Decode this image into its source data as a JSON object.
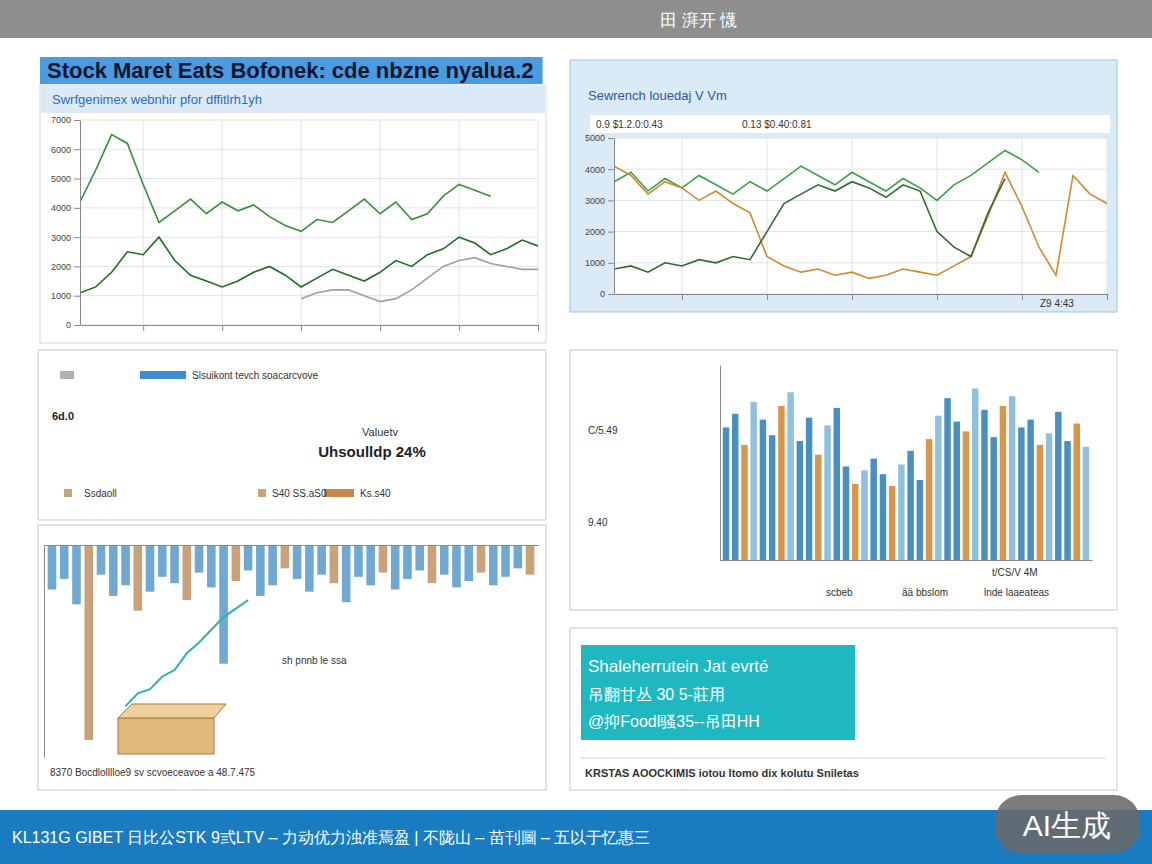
{
  "page": {
    "header": "田 湃开 懱",
    "title": "Stock Maret Eats Bofonek: cde nbzne nyalua.2",
    "footer": "KL131G GIBET   日比公STK 9弎LTV – 力动优力浊准焉盈 | 不陇山 – 苗刊圖 – 五以于忆惠三",
    "badge": "AI生成",
    "kpi": {
      "legend_text": "Slsuikont tevch soacarcvove",
      "left_label": "6d.0",
      "caption": "Valuetv",
      "value": "Uhsoulldp 24%",
      "footer": [
        "Ssdaoll",
        "S40 SS.aS0",
        "Ks.s40"
      ]
    },
    "note": {
      "lines": [
        "Shaleherrutein Jat evrté",
        "吊翻甘丛 30 5-莊用",
        "@抑Foodl骚35--吊田HH"
      ],
      "footer": "KRSTAS AOOCKIMIS iotou ltomo dix kolutu   Sniletas"
    }
  },
  "chart_data": [
    {
      "type": "line",
      "title": "Swrfgenimex webnhir pfor dffitlrh1yh",
      "x": [
        1,
        2,
        3,
        4,
        5,
        6,
        7,
        8,
        9,
        10,
        11,
        12,
        13,
        14,
        15,
        16,
        17,
        18,
        19,
        20,
        21,
        22,
        23,
        24,
        25,
        26,
        27,
        28,
        29,
        30
      ],
      "xlim": [
        1,
        30
      ],
      "xticks": [
        5,
        10,
        15,
        20,
        25,
        30
      ],
      "ylim": [
        0,
        7000
      ],
      "yticks": [
        0,
        1000,
        2000,
        3000,
        4000,
        5000,
        6000,
        7000
      ],
      "grid": true,
      "tick_labels": "y",
      "series": [
        {
          "color": "#3a8f3a",
          "values": [
            4200,
            5300,
            6500,
            6200,
            4800,
            3500,
            3900,
            4300,
            3800,
            4200,
            3900,
            4100,
            3700,
            3400,
            3200,
            3600,
            3500,
            3900,
            4300,
            3800,
            4200,
            3600,
            3800,
            4400,
            4800,
            4600,
            4400,
            null,
            null,
            null
          ]
        },
        {
          "color": "#1e6e28",
          "values": [
            1100,
            1300,
            1800,
            2500,
            2400,
            3000,
            2200,
            1700,
            1500,
            1300,
            1500,
            1800,
            2000,
            1700,
            1300,
            1600,
            1900,
            1700,
            1500,
            1800,
            2200,
            2000,
            2400,
            2600,
            3000,
            2800,
            2400,
            2600,
            2900,
            2700
          ]
        },
        {
          "color": "#a0a0a0",
          "values": [
            null,
            null,
            null,
            null,
            null,
            null,
            null,
            null,
            null,
            null,
            null,
            null,
            null,
            null,
            900,
            1100,
            1200,
            1200,
            1000,
            800,
            900,
            1200,
            1600,
            2000,
            2200,
            2300,
            2100,
            2000,
            1900,
            1900
          ]
        }
      ]
    },
    {
      "type": "line",
      "title": "Sewrench louedaj V Vm",
      "annotations": [
        "0.9 $1.2.0:0.43",
        "0.13 $0.40:0.81",
        "Z9 4:43"
      ],
      "x": [
        1,
        2,
        3,
        4,
        5,
        6,
        7,
        8,
        9,
        10,
        11,
        12,
        13,
        14,
        15,
        16,
        17,
        18,
        19,
        20,
        21,
        22,
        23,
        24,
        25,
        26,
        27,
        28,
        29,
        30
      ],
      "xlim": [
        1,
        30
      ],
      "xticks": [
        5,
        10,
        15,
        20,
        25,
        30
      ],
      "ylim": [
        0,
        5000
      ],
      "yticks": [
        0,
        1000,
        2000,
        3000,
        4000,
        5000
      ],
      "grid": true,
      "tick_labels": "y",
      "series": [
        {
          "color": "#3aa04a",
          "values": [
            3600,
            3900,
            3300,
            3700,
            3400,
            3800,
            3500,
            3200,
            3600,
            3300,
            3700,
            4100,
            3800,
            3500,
            3900,
            3600,
            3300,
            3700,
            3400,
            3000,
            3500,
            3800,
            4200,
            4600,
            4300,
            3900,
            null,
            null,
            null,
            null
          ]
        },
        {
          "color": "#d08a2e",
          "values": [
            4100,
            3800,
            3200,
            3600,
            3400,
            3000,
            3300,
            2900,
            2600,
            1200,
            900,
            700,
            800,
            600,
            700,
            500,
            600,
            800,
            700,
            600,
            900,
            1200,
            2500,
            3900,
            2800,
            1500,
            600,
            3800,
            3200,
            2900
          ]
        },
        {
          "color": "#2e6b2e",
          "values": [
            800,
            900,
            700,
            1000,
            900,
            1100,
            1000,
            1200,
            1100,
            2000,
            2900,
            3200,
            3500,
            3300,
            3600,
            3400,
            3100,
            3500,
            3300,
            2000,
            1500,
            1200,
            2600,
            3700,
            null,
            null,
            null,
            null,
            null,
            null
          ]
        }
      ]
    },
    {
      "type": "bar",
      "annotations": [
        "C/5.49",
        "9.40",
        "t/CS/V 4M",
        "scbeb",
        "ää bbslom",
        "lnde laaeateas"
      ],
      "categories": [
        null,
        null,
        null,
        null,
        null,
        null,
        null,
        null,
        null,
        null,
        null,
        null,
        null,
        null,
        null,
        null,
        null,
        null,
        null,
        null,
        null,
        null,
        null,
        null,
        null,
        null,
        null,
        null,
        null,
        null,
        null,
        null,
        null,
        null,
        null,
        null,
        null,
        null,
        null,
        null
      ],
      "values": [
        6.8,
        7.5,
        5.9,
        8.1,
        7.2,
        6.4,
        7.9,
        8.6,
        6.1,
        7.3,
        5.4,
        6.9,
        7.8,
        4.8,
        3.9,
        4.6,
        5.2,
        4.4,
        3.8,
        4.9,
        5.6,
        4.1,
        6.2,
        7.4,
        8.3,
        7.1,
        6.6,
        8.8,
        7.7,
        6.3,
        7.9,
        8.4,
        6.8,
        7.2,
        5.9,
        6.5,
        7.6,
        6.1,
        7.0,
        5.8
      ],
      "colors": [
        "#4a8fc2",
        "#4a8fc2",
        "#d9954a",
        "#8fc0e0",
        "#4a8fc2",
        "#4a8fc2",
        "#d9954a",
        "#8fc0e0",
        "#4a8fc2",
        "#4a8fc2",
        "#d9954a",
        "#8fc0e0",
        "#4a8fc2",
        "#4a8fc2",
        "#d9954a",
        "#8fc0e0",
        "#4a8fc2",
        "#4a8fc2",
        "#d9954a",
        "#8fc0e0",
        "#4a8fc2",
        "#4a8fc2",
        "#d9954a",
        "#8fc0e0",
        "#4a8fc2",
        "#4a8fc2",
        "#d9954a",
        "#8fc0e0",
        "#4a8fc2",
        "#4a8fc2",
        "#d9954a",
        "#8fc0e0",
        "#4a8fc2",
        "#4a8fc2",
        "#d9954a",
        "#8fc0e0",
        "#4a8fc2",
        "#4a8fc2",
        "#d9954a",
        "#8fc0e0"
      ],
      "ylim": [
        0,
        10
      ],
      "grid": false,
      "tick_labels": false
    },
    {
      "type": "bar",
      "annotations": [
        "sh pnnb le ssa",
        "8370 Bocdlolllloe9 sv scvoeceavoe a 48.7.475"
      ],
      "categories": [
        null,
        null,
        null,
        null,
        null,
        null,
        null,
        null,
        null,
        null,
        null,
        null,
        null,
        null,
        null,
        null,
        null,
        null,
        null,
        null,
        null,
        null,
        null,
        null,
        null,
        null,
        null,
        null,
        null,
        null,
        null,
        null,
        null,
        null,
        null,
        null,
        null,
        null,
        null,
        null
      ],
      "ylim": [
        -10,
        0
      ],
      "grid": false,
      "tick_labels": false,
      "series": [
        {
          "type": "bar",
          "values": [
            -2.1,
            -1.6,
            -2.8,
            -9.2,
            -1.4,
            -2.4,
            -1.9,
            -3.1,
            -2.2,
            -1.5,
            -1.8,
            -2.6,
            -1.3,
            -2.0,
            -5.6,
            -1.7,
            -1.2,
            -2.4,
            -1.9,
            -1.1,
            -1.6,
            -2.2,
            -1.4,
            -1.8,
            -2.7,
            -1.5,
            -1.9,
            -1.3,
            -2.1,
            -1.6,
            -1.2,
            -1.8,
            -1.4,
            -2.0,
            -1.7,
            -1.3,
            -1.9,
            -1.5,
            -1.1,
            -1.4
          ],
          "colors": [
            "#6fa8d2",
            "#6fa8d2",
            "#6fa8d2",
            "#c9a27a",
            "#6fa8d2",
            "#6fa8d2",
            "#6fa8d2",
            "#c9a27a",
            "#6fa8d2",
            "#6fa8d2",
            "#6fa8d2",
            "#c9a27a",
            "#6fa8d2",
            "#6fa8d2",
            "#6fa8d2",
            "#c9a27a",
            "#6fa8d2",
            "#6fa8d2",
            "#6fa8d2",
            "#c9a27a",
            "#6fa8d2",
            "#6fa8d2",
            "#6fa8d2",
            "#c9a27a",
            "#6fa8d2",
            "#6fa8d2",
            "#6fa8d2",
            "#c9a27a",
            "#6fa8d2",
            "#6fa8d2",
            "#6fa8d2",
            "#c9a27a",
            "#6fa8d2",
            "#6fa8d2",
            "#6fa8d2",
            "#c9a27a",
            "#6fa8d2",
            "#6fa8d2",
            "#6fa8d2",
            "#c9a27a"
          ]
        },
        {
          "type": "line",
          "color": "#2bb3b0",
          "values": [
            null,
            null,
            null,
            null,
            null,
            null,
            -7.6,
            -7.0,
            -6.8,
            -6.2,
            -5.9,
            -5.1,
            -4.6,
            -4.0,
            -3.4,
            -3.0,
            -2.6,
            null,
            null,
            null,
            null,
            null,
            null,
            null,
            null,
            null,
            null,
            null,
            null,
            null,
            null,
            null,
            null,
            null,
            null,
            null,
            null,
            null,
            null,
            null
          ]
        }
      ]
    }
  ]
}
